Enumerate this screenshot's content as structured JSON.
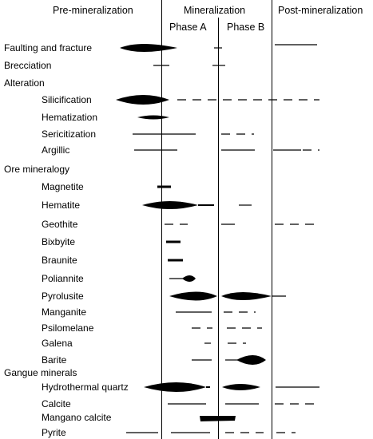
{
  "headers": {
    "pre": "Pre-mineralization",
    "min": "Mineralization",
    "post": "Post-mineralization",
    "phaseA": "Phase A",
    "phaseB": "Phase B"
  },
  "rows": [
    {
      "label": "Faulting and fracture",
      "indent": false
    },
    {
      "label": "Brecciation",
      "indent": false
    },
    {
      "label": "Alteration",
      "indent": false
    },
    {
      "label": "Silicification",
      "indent": true
    },
    {
      "label": "Hematization",
      "indent": true
    },
    {
      "label": "Sericitization",
      "indent": true
    },
    {
      "label": "Argillic",
      "indent": true
    },
    {
      "label": "Ore mineralogy",
      "indent": false
    },
    {
      "label": "Magnetite",
      "indent": true
    },
    {
      "label": "Hematite",
      "indent": true
    },
    {
      "label": "Geothite",
      "indent": true
    },
    {
      "label": "Bixbyite",
      "indent": true
    },
    {
      "label": "Braunite",
      "indent": true
    },
    {
      "label": "Poliannite",
      "indent": true
    },
    {
      "label": "Pyrolusite",
      "indent": true
    },
    {
      "label": "Manganite",
      "indent": true
    },
    {
      "label": "Psilomelane",
      "indent": true
    },
    {
      "label": "Galena",
      "indent": true
    },
    {
      "label": "Barite",
      "indent": true
    },
    {
      "label": "Gangue minerals",
      "indent": false
    },
    {
      "label": "Hydrothermal quartz",
      "indent": true
    },
    {
      "label": "Calcite",
      "indent": true
    },
    {
      "label": "Mangano calcite",
      "indent": true
    },
    {
      "label": "Pyrite",
      "indent": true
    }
  ]
}
